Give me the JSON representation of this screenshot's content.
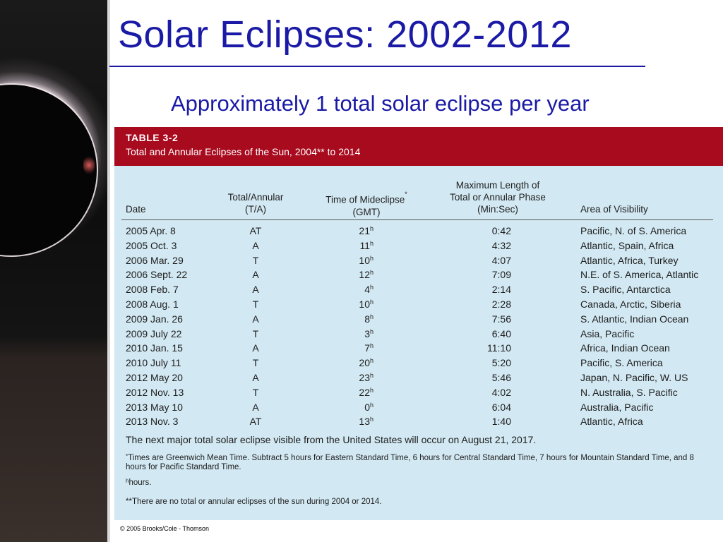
{
  "slide": {
    "title": "Solar Eclipses: 2002-2012",
    "subtitle": "Approximately 1 total solar eclipse per year",
    "copyright": "© 2005 Brooks/Cole - Thomson"
  },
  "table": {
    "number": "TABLE 3-2",
    "caption": "Total and Annular Eclipses of the Sun, 2004** to 2014",
    "headers": {
      "date": "Date",
      "ta_1": "Total/Annular",
      "ta_2": "(T/A)",
      "time_1": "Time of Mideclipse",
      "time_mark": "*",
      "time_2": "(GMT)",
      "len_1": "Maximum Length of",
      "len_2": "Total or Annular Phase",
      "len_3": "(Min:Sec)",
      "area": "Area of Visibility"
    },
    "hour_mark": "h",
    "rows": [
      {
        "date": "2005 Apr. 8",
        "ta": "AT",
        "time": "21",
        "length": "0:42",
        "area": "Pacific, N. of S. America"
      },
      {
        "date": "2005 Oct. 3",
        "ta": "A",
        "time": "11",
        "length": "4:32",
        "area": "Atlantic, Spain, Africa"
      },
      {
        "date": "2006 Mar. 29",
        "ta": "T",
        "time": "10",
        "length": "4:07",
        "area": "Atlantic, Africa, Turkey"
      },
      {
        "date": "2006 Sept. 22",
        "ta": "A",
        "time": "12",
        "length": "7:09",
        "area": "N.E. of S. America, Atlantic"
      },
      {
        "date": "2008 Feb. 7",
        "ta": "A",
        "time": "4",
        "length": "2:14",
        "area": "S. Pacific, Antarctica"
      },
      {
        "date": "2008 Aug. 1",
        "ta": "T",
        "time": "10",
        "length": "2:28",
        "area": "Canada, Arctic, Siberia"
      },
      {
        "date": "2009 Jan. 26",
        "ta": "A",
        "time": "8",
        "length": "7:56",
        "area": "S. Atlantic, Indian Ocean"
      },
      {
        "date": "2009 July 22",
        "ta": "T",
        "time": "3",
        "length": "6:40",
        "area": "Asia, Pacific"
      },
      {
        "date": "2010 Jan. 15",
        "ta": "A",
        "time": "7",
        "length": "11:10",
        "area": "Africa, Indian Ocean"
      },
      {
        "date": "2010 July 11",
        "ta": "T",
        "time": "20",
        "length": "5:20",
        "area": "Pacific, S. America"
      },
      {
        "date": "2012 May 20",
        "ta": "A",
        "time": "23",
        "length": "5:46",
        "area": "Japan, N. Pacific, W. US"
      },
      {
        "date": "2012 Nov. 13",
        "ta": "T",
        "time": "22",
        "length": "4:02",
        "area": "N. Australia, S. Pacific"
      },
      {
        "date": "2013 May 10",
        "ta": "A",
        "time": "0",
        "length": "6:04",
        "area": "Australia, Pacific"
      },
      {
        "date": "2013 Nov. 3",
        "ta": "AT",
        "time": "13",
        "length": "1:40",
        "area": "Atlantic, Africa"
      }
    ],
    "note": "The next major total solar eclipse visible from the United States will occur on August 21, 2017.",
    "footnote_star_mark": "*",
    "footnote_star": "Times are Greenwich Mean Time. Subtract 5 hours for Eastern Standard Time, 6 hours for Central Standard Time, 7 hours for Mountain Standard Time, and 8 hours for Pacific Standard Time.",
    "footnote_h_mark": "h",
    "footnote_h": "hours.",
    "footnote_double_star": "**There are no total or annular eclipses of the sun during 2004 or 2014."
  }
}
